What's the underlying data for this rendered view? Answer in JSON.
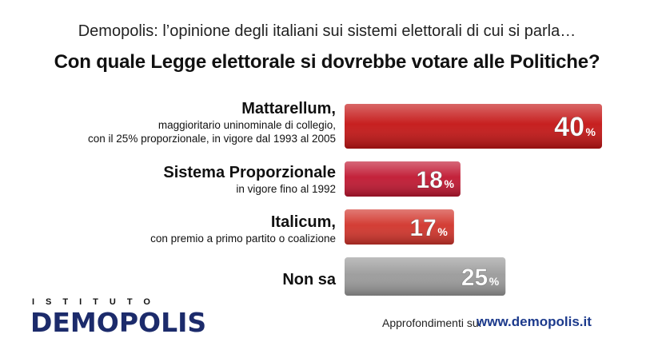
{
  "header": {
    "subtitle": "Demopolis: l’opinione degli italiani sui sistemi elettorali di cui si parla…",
    "title": "Con quale Legge elettorale si dovrebbe votare alle Politiche?"
  },
  "chart_data": {
    "type": "bar",
    "orientation": "horizontal",
    "title": "Con quale Legge elettorale si dovrebbe votare alle Politiche?",
    "unit": "%",
    "categories": [
      {
        "name": "Mattarellum,",
        "description": [
          "maggioritario uninominale di collegio,",
          "con il 25% proporzionale, in vigore dal 1993 al 2005"
        ]
      },
      {
        "name": "Sistema Proporzionale",
        "description": [
          "in vigore fino al 1992"
        ]
      },
      {
        "name": "Italicum,",
        "description": [
          "con premio a primo partito o coalizione"
        ]
      },
      {
        "name": "Non sa",
        "description": []
      }
    ],
    "values": [
      40,
      18,
      17,
      25
    ],
    "colors": [
      "#c41414",
      "#c01630",
      "#d1332a",
      "#9a9a9a"
    ],
    "xlim": [
      0,
      40
    ]
  },
  "footer": {
    "logo_top": "ISTITUTO",
    "logo": "DEMOPOLIS",
    "text": "Approfondimenti su:",
    "url": "www.demopolis.it"
  }
}
